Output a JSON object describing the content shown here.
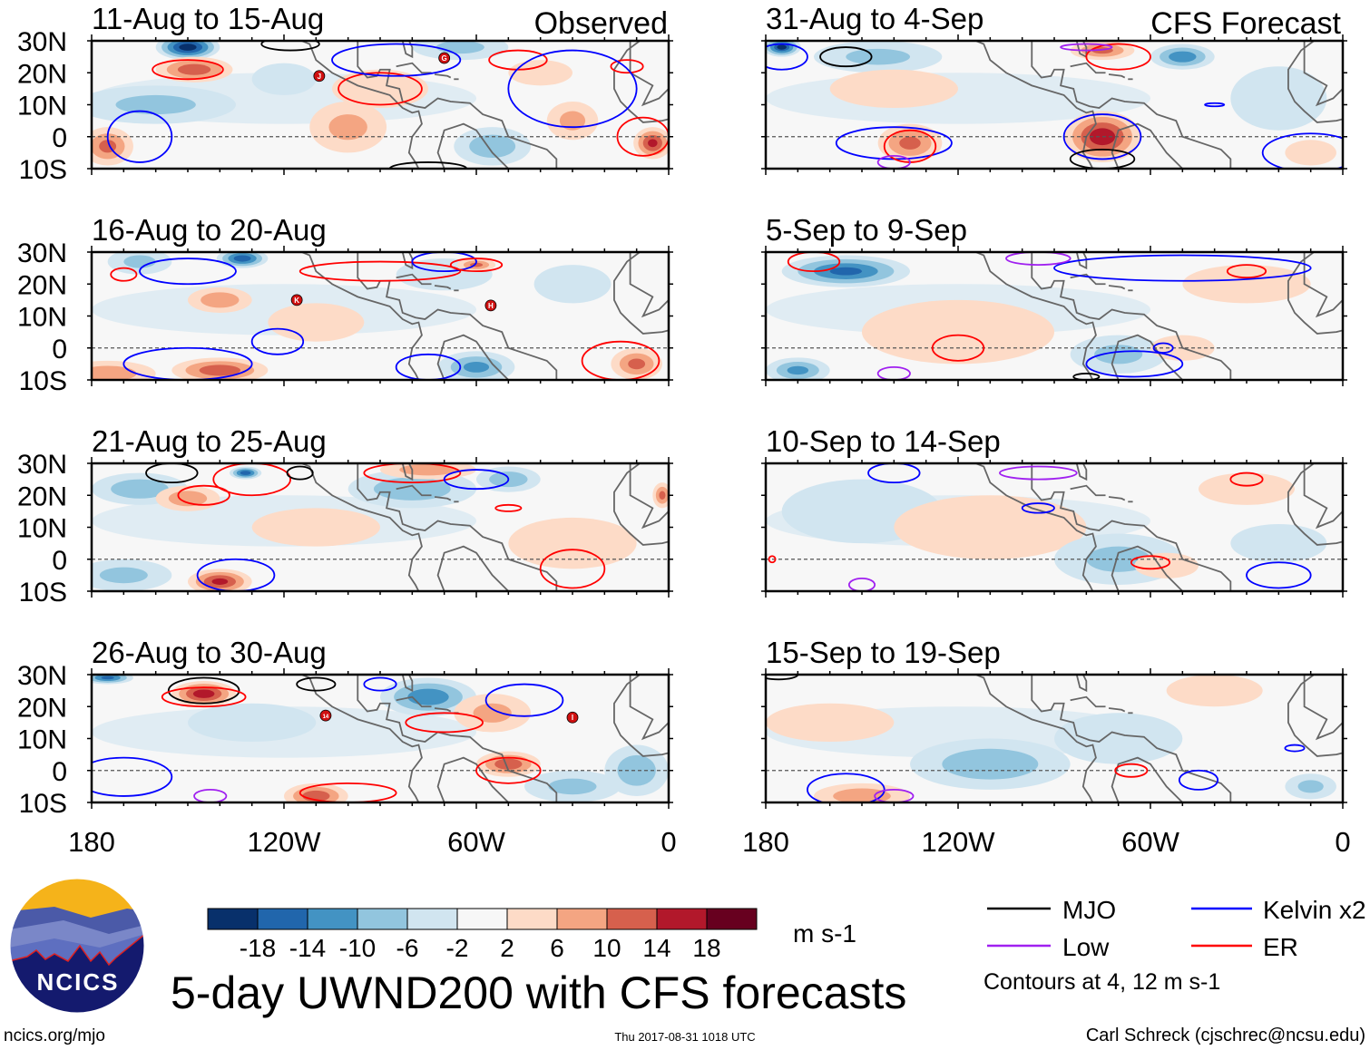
{
  "header": {
    "left_label": "Observed",
    "right_label": "CFS Forecast"
  },
  "title": "5-day UWND200 with CFS forecasts",
  "footer": {
    "url": "ncics.org/mjo",
    "timestamp": "Thu 2017-08-31 1018 UTC",
    "author": "Carl Schreck (cjschrec@ncsu.edu)"
  },
  "logo": {
    "text": "NCICS"
  },
  "colorbar": {
    "units": "m s-1",
    "ticks": [
      "-18",
      "-14",
      "-10",
      "-6",
      "-2",
      "2",
      "6",
      "10",
      "14",
      "18"
    ],
    "colors": [
      "#08306b",
      "#2166ac",
      "#4393c3",
      "#92c5de",
      "#d1e5f0",
      "#f7f7f7",
      "#fddbc7",
      "#f4a582",
      "#d6604d",
      "#b2182b",
      "#67001f"
    ]
  },
  "legend": {
    "items": [
      {
        "label": "MJO",
        "color": "#000000"
      },
      {
        "label": "Kelvin x2",
        "color": "#0000ff"
      },
      {
        "label": "Low",
        "color": "#a020f0"
      },
      {
        "label": "ER",
        "color": "#ff0000"
      }
    ],
    "note": "Contours at 4, 12 m s-1"
  },
  "chart_data": {
    "type": "heatmap",
    "variable": "200-hPa zonal wind anomaly",
    "units": "m s-1",
    "xlim": [
      -180,
      0
    ],
    "ylim": [
      -10,
      30
    ],
    "lat_ticks": [
      "30N",
      "20N",
      "10N",
      "0",
      "10S"
    ],
    "lon_ticks": [
      "180",
      "120W",
      "60W",
      "0"
    ],
    "contour_colors": {
      "MJO": "#000000",
      "Kelvin": "#0000ff",
      "Low": "#a020f0",
      "ER": "#ff0000"
    },
    "panels": [
      {
        "title": "11-Aug to 15-Aug",
        "col": 0,
        "row": 0,
        "anomalies": [
          [
            -150,
            28,
            10,
            4,
            -20
          ],
          [
            -148,
            21,
            12,
            4,
            12
          ],
          [
            -175,
            -3,
            8,
            6,
            10
          ],
          [
            -100,
            3,
            12,
            8,
            6
          ],
          [
            -160,
            10,
            25,
            6,
            -6
          ],
          [
            -65,
            28,
            15,
            4,
            -6
          ],
          [
            -55,
            -3,
            12,
            6,
            -8
          ],
          [
            -5,
            -2,
            6,
            5,
            14
          ],
          [
            -30,
            5,
            8,
            6,
            6
          ],
          [
            -120,
            18,
            10,
            5,
            -5
          ],
          [
            -90,
            15,
            15,
            6,
            5
          ],
          [
            -40,
            20,
            10,
            4,
            4
          ]
        ],
        "contours": [
          [
            "MJO",
            -118,
            29,
            9,
            2
          ],
          [
            "ER",
            -150,
            21,
            11,
            3
          ],
          [
            "ER",
            -90,
            15,
            13,
            5
          ],
          [
            "ER",
            -47,
            24,
            9,
            3
          ],
          [
            "ER",
            -13,
            22,
            5,
            2
          ],
          [
            "Kelvin",
            -165,
            0,
            10,
            8
          ],
          [
            "Kelvin",
            -30,
            15,
            20,
            12
          ],
          [
            "ER",
            -8,
            0,
            8,
            6
          ],
          [
            "Kelvin",
            -85,
            24,
            20,
            5
          ],
          [
            "MJO",
            -75,
            -10,
            12,
            2
          ]
        ],
        "storms": [
          {
            "label": "J",
            "lon": -109,
            "lat": 19
          },
          {
            "label": "G",
            "lon": -70,
            "lat": 24.6
          }
        ]
      },
      {
        "title": "16-Aug to 20-Aug",
        "col": 0,
        "row": 1,
        "anomalies": [
          [
            -133,
            28,
            8,
            3,
            -16
          ],
          [
            -165,
            27,
            10,
            4,
            -6
          ],
          [
            -140,
            15,
            10,
            4,
            8
          ],
          [
            -175,
            -8,
            15,
            4,
            8
          ],
          [
            -140,
            -7,
            15,
            4,
            12
          ],
          [
            -60,
            -6,
            12,
            5,
            -10
          ],
          [
            -30,
            20,
            12,
            6,
            -4
          ],
          [
            -10,
            -5,
            8,
            5,
            10
          ],
          [
            -110,
            8,
            15,
            6,
            5
          ],
          [
            -70,
            23,
            15,
            5,
            -5
          ],
          [
            -60,
            26,
            6,
            2,
            10
          ]
        ],
        "contours": [
          [
            "Kelvin",
            -150,
            24,
            15,
            4
          ],
          [
            "ER",
            -170,
            23,
            4,
            2
          ],
          [
            "ER",
            -90,
            24,
            25,
            3
          ],
          [
            "Kelvin",
            -122,
            2,
            8,
            4
          ],
          [
            "Kelvin",
            -150,
            -5,
            20,
            5
          ],
          [
            "ER",
            -15,
            -4,
            12,
            6
          ],
          [
            "Kelvin",
            -70,
            27,
            10,
            3
          ],
          [
            "ER",
            -60,
            26,
            8,
            2
          ],
          [
            "Kelvin",
            -75,
            -6,
            10,
            4
          ]
        ],
        "storms": [
          {
            "label": "K",
            "lon": -116,
            "lat": 15
          },
          {
            "label": "H",
            "lon": -55.5,
            "lat": 13.3
          }
        ]
      },
      {
        "title": "21-Aug to 25-Aug",
        "col": 0,
        "row": 2,
        "anomalies": [
          [
            -132,
            27,
            5,
            2,
            -16
          ],
          [
            -165,
            22,
            15,
            5,
            -8
          ],
          [
            -150,
            19,
            10,
            4,
            8
          ],
          [
            -80,
            22,
            20,
            6,
            -8
          ],
          [
            -75,
            28,
            15,
            3,
            8
          ],
          [
            -50,
            25,
            10,
            4,
            -8
          ],
          [
            -140,
            -7,
            10,
            4,
            14
          ],
          [
            -30,
            5,
            20,
            8,
            5
          ],
          [
            -170,
            -5,
            15,
            5,
            -6
          ],
          [
            -110,
            10,
            20,
            6,
            4
          ],
          [
            -2,
            20,
            3,
            4,
            10
          ]
        ],
        "contours": [
          [
            "MJO",
            -155,
            27,
            8,
            3
          ],
          [
            "ER",
            -145,
            20,
            8,
            3
          ],
          [
            "ER",
            -130,
            25,
            12,
            5
          ],
          [
            "Kelvin",
            -135,
            -5,
            12,
            5
          ],
          [
            "ER",
            -80,
            27,
            15,
            3
          ],
          [
            "Kelvin",
            -60,
            25,
            10,
            3
          ],
          [
            "ER",
            -30,
            -3,
            10,
            6
          ],
          [
            "MJO",
            -115,
            27,
            4,
            2
          ],
          [
            "ER",
            -50,
            16,
            4,
            1
          ]
        ],
        "storms": []
      },
      {
        "title": "26-Aug to 30-Aug",
        "col": 0,
        "row": 3,
        "anomalies": [
          [
            -145,
            24,
            10,
            4,
            16
          ],
          [
            -175,
            29,
            8,
            2,
            -14
          ],
          [
            -75,
            23,
            15,
            6,
            -12
          ],
          [
            -110,
            -8,
            10,
            4,
            12
          ],
          [
            -50,
            2,
            10,
            4,
            12
          ],
          [
            -10,
            0,
            10,
            8,
            -8
          ],
          [
            -55,
            18,
            12,
            6,
            6
          ],
          [
            -130,
            15,
            20,
            6,
            -4
          ],
          [
            -30,
            -5,
            15,
            5,
            -6
          ]
        ],
        "contours": [
          [
            "MJO",
            -145,
            25,
            11,
            4
          ],
          [
            "ER",
            -145,
            23,
            13,
            3
          ],
          [
            "MJO",
            -110,
            27,
            6,
            2
          ],
          [
            "Kelvin",
            -90,
            27,
            5,
            2
          ],
          [
            "ER",
            -70,
            15,
            12,
            3
          ],
          [
            "Kelvin",
            -45,
            22,
            12,
            5
          ],
          [
            "ER",
            -100,
            -7,
            15,
            3
          ],
          [
            "ER",
            -50,
            0,
            10,
            4
          ],
          [
            "Kelvin",
            -170,
            -2,
            15,
            6
          ],
          [
            "Low",
            -143,
            -8,
            5,
            2
          ]
        ],
        "storms": [
          {
            "label": "14",
            "lon": -107,
            "lat": 17.2
          },
          {
            "label": "I",
            "lon": -30,
            "lat": 16.6
          }
        ]
      },
      {
        "title": "31-Aug to 4-Sep",
        "col": 1,
        "row": 0,
        "anomalies": [
          [
            -175,
            28,
            6,
            3,
            -18
          ],
          [
            -145,
            25,
            20,
            5,
            -6
          ],
          [
            -135,
            -2,
            10,
            6,
            10
          ],
          [
            -75,
            0,
            12,
            8,
            16
          ],
          [
            -50,
            25,
            10,
            4,
            -12
          ],
          [
            -75,
            27,
            10,
            3,
            10
          ],
          [
            -20,
            12,
            15,
            10,
            -4
          ],
          [
            -140,
            15,
            20,
            6,
            4
          ],
          [
            -10,
            -5,
            8,
            4,
            5
          ]
        ],
        "contours": [
          [
            "MJO",
            -155,
            25,
            8,
            3
          ],
          [
            "Kelvin",
            -140,
            -2,
            18,
            5
          ],
          [
            "ER",
            -135,
            -3,
            8,
            5
          ],
          [
            "Kelvin",
            -75,
            0,
            12,
            7
          ],
          [
            "MJO",
            -75,
            -7,
            10,
            3
          ],
          [
            "ER",
            -70,
            25,
            10,
            4
          ],
          [
            "Low",
            -80,
            28,
            8,
            1
          ],
          [
            "Kelvin",
            -175,
            25,
            8,
            4
          ],
          [
            "Kelvin",
            -40,
            10,
            3,
            0.5
          ],
          [
            "Kelvin",
            -10,
            -5,
            15,
            6
          ],
          [
            "Low",
            -140,
            -8,
            5,
            2
          ]
        ],
        "storms": []
      },
      {
        "title": "5-Sep to 9-Sep",
        "col": 1,
        "row": 1,
        "anomalies": [
          [
            -155,
            24,
            20,
            5,
            -14
          ],
          [
            -170,
            -7,
            10,
            4,
            -10
          ],
          [
            -120,
            5,
            30,
            10,
            4
          ],
          [
            -70,
            -2,
            15,
            6,
            -6
          ],
          [
            -30,
            20,
            20,
            6,
            5
          ],
          [
            -50,
            0,
            10,
            4,
            4
          ]
        ],
        "contours": [
          [
            "ER",
            -165,
            27,
            8,
            3
          ],
          [
            "ER",
            -120,
            0,
            8,
            4
          ],
          [
            "ER",
            -30,
            24,
            6,
            2
          ],
          [
            "Kelvin",
            -50,
            25,
            40,
            4
          ],
          [
            "Low",
            -95,
            28,
            10,
            2
          ],
          [
            "Low",
            -140,
            -8,
            5,
            2
          ],
          [
            "MJO",
            -80,
            -9,
            4,
            1
          ],
          [
            "Kelvin",
            -65,
            -5,
            15,
            4
          ],
          [
            "Kelvin",
            -56,
            0,
            3,
            1.5
          ]
        ],
        "storms": []
      },
      {
        "title": "10-Sep to 14-Sep",
        "col": 1,
        "row": 2,
        "anomalies": [
          [
            -150,
            15,
            25,
            10,
            -4
          ],
          [
            -110,
            10,
            30,
            10,
            3
          ],
          [
            -70,
            0,
            20,
            8,
            -6
          ],
          [
            -30,
            22,
            15,
            5,
            4
          ],
          [
            -55,
            -2,
            10,
            4,
            5
          ],
          [
            -20,
            5,
            15,
            6,
            -4
          ]
        ],
        "contours": [
          [
            "Kelvin",
            -140,
            27,
            8,
            3
          ],
          [
            "ER",
            -30,
            25,
            5,
            2
          ],
          [
            "Kelvin",
            -95,
            16,
            5,
            1.5
          ],
          [
            "ER",
            -60,
            -1,
            6,
            2
          ],
          [
            "Low",
            -95,
            27,
            12,
            2
          ],
          [
            "Low",
            -150,
            -8,
            4,
            2
          ],
          [
            "ER",
            -178,
            0,
            1,
            1
          ],
          [
            "Kelvin",
            -20,
            -5,
            10,
            4
          ]
        ],
        "storms": []
      },
      {
        "title": "15-Sep to 19-Sep",
        "col": 1,
        "row": 3,
        "anomalies": [
          [
            -110,
            2,
            25,
            8,
            -8
          ],
          [
            -150,
            -8,
            15,
            4,
            8
          ],
          [
            -160,
            15,
            20,
            6,
            4
          ],
          [
            -40,
            25,
            15,
            5,
            4
          ],
          [
            -70,
            10,
            20,
            8,
            -3
          ],
          [
            -10,
            -5,
            8,
            4,
            -6
          ]
        ],
        "contours": [
          [
            "MJO",
            -176,
            30,
            6,
            1.5
          ],
          [
            "Kelvin",
            -155,
            -6,
            12,
            5
          ],
          [
            "Low",
            -140,
            -8,
            6,
            2
          ],
          [
            "ER",
            -66,
            0,
            5,
            2
          ],
          [
            "Kelvin",
            -45,
            -3,
            6,
            3
          ],
          [
            "Kelvin",
            -15,
            7,
            3,
            1
          ]
        ],
        "storms": []
      }
    ]
  }
}
